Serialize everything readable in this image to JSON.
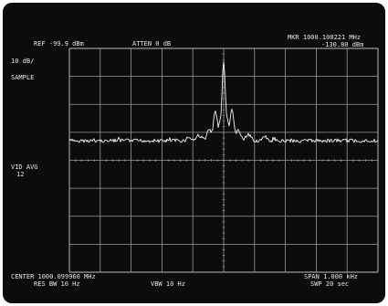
{
  "header": {
    "reference_level": "REF -99.9 dBm",
    "attenuation": "ATTEN 0 dB",
    "marker_frequency": "MKR 1000.100221 MHz",
    "marker_level": "-130.80 dBm"
  },
  "left_panel": {
    "scale": "10 dB/",
    "detector": "SAMPLE",
    "video_avg_label": "VID AVG",
    "video_avg_count": "12"
  },
  "footer": {
    "center_frequency": "CENTER 1000.099960 MHz",
    "resolution_bw": "RES BW 10 Hz",
    "video_bw": "VBW 10 Hz",
    "span": "SPAN 1.000 kHz",
    "sweep_time": "SWP 20  sec"
  },
  "colors": {
    "screen_background": "#0c0c0c",
    "graticule": "#9a9a9a",
    "trace": "#f2f2f2",
    "text": "#e6e6e6"
  }
}
